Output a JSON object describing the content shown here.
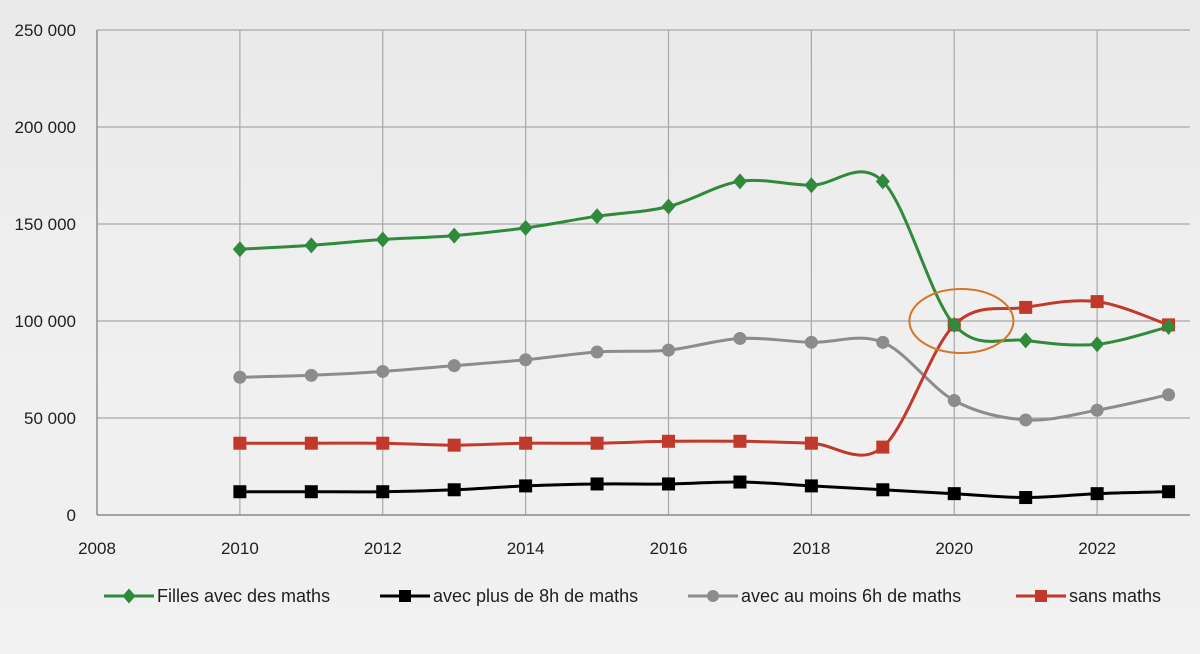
{
  "chart_data": {
    "type": "line",
    "x": [
      2010,
      2011,
      2012,
      2013,
      2014,
      2015,
      2016,
      2017,
      2018,
      2019,
      2020,
      2021,
      2022,
      2023
    ],
    "xlim": [
      2008,
      2023.3
    ],
    "ylim": [
      0,
      250000
    ],
    "xticks": [
      2008,
      2010,
      2012,
      2014,
      2016,
      2018,
      2020,
      2022
    ],
    "xtick_labels": [
      "2008",
      "2010",
      "2012",
      "2014",
      "2016",
      "2018",
      "2020",
      "2022"
    ],
    "yticks": [
      0,
      50000,
      100000,
      150000,
      200000,
      250000
    ],
    "ytick_labels": [
      "0",
      "50 000",
      "100 000",
      "150 000",
      "200 000",
      "250 000"
    ],
    "grid": true,
    "legend_position": "bottom",
    "series": [
      {
        "name": "Filles avec des maths",
        "color": "#2f8a3c",
        "marker": "diamond",
        "values": [
          137000,
          139000,
          142000,
          144000,
          148000,
          154000,
          159000,
          172000,
          170000,
          172000,
          98000,
          90000,
          88000,
          97000
        ]
      },
      {
        "name": "avec plus de 8h de maths",
        "color": "#000000",
        "marker": "square",
        "values": [
          12000,
          12000,
          12000,
          13000,
          15000,
          16000,
          16000,
          17000,
          15000,
          13000,
          11000,
          9000,
          11000,
          12000
        ]
      },
      {
        "name": "avec au moins 6h de maths",
        "color": "#8c8c8c",
        "marker": "circle",
        "values": [
          71000,
          72000,
          74000,
          77000,
          80000,
          84000,
          85000,
          91000,
          89000,
          89000,
          59000,
          49000,
          54000,
          62000
        ]
      },
      {
        "name": "sans maths",
        "color": "#c0392b",
        "marker": "square",
        "values": [
          37000,
          37000,
          37000,
          36000,
          37000,
          37000,
          38000,
          38000,
          37000,
          35000,
          98000,
          107000,
          110000,
          98000
        ]
      }
    ],
    "annotations": [
      {
        "type": "ellipse",
        "x": 2020.1,
        "y": 100000,
        "color": "#d4762a"
      }
    ]
  }
}
